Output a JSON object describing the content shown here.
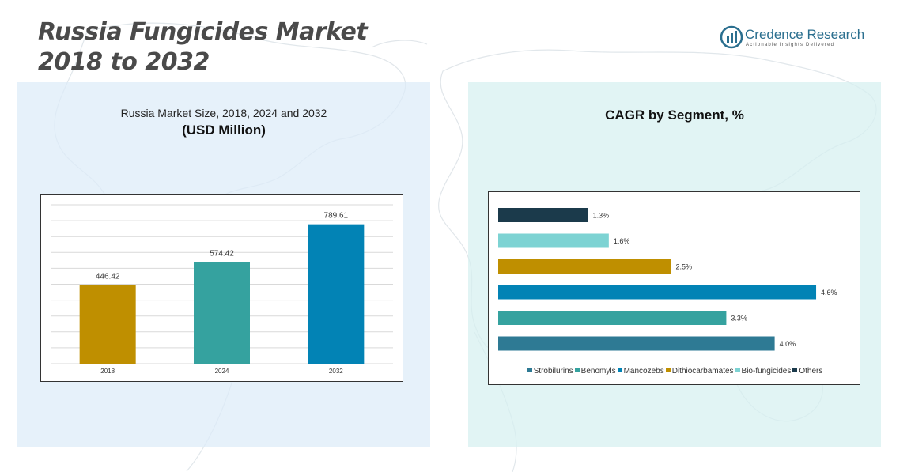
{
  "page": {
    "title_line1": "Russia Fungicides Market",
    "title_line2": "2018 to 2032"
  },
  "brand": {
    "name_part1": "Credence",
    "name_part2": " Research",
    "tagline": "Actionable Insights Delivered",
    "logo_icon": "credence-logo-icon"
  },
  "colors": {
    "gold": "#BF8F00",
    "teal": "#35A29F",
    "blue": "#0283B5",
    "dark": "#1B3A4B",
    "light_teal": "#7DD3D3",
    "steel": "#2E7A94"
  },
  "chart_data": [
    {
      "type": "bar",
      "title": "Russia Market Size, 2018, 2024 and 2032",
      "subtitle": "(USD Million)",
      "categories": [
        "2018",
        "2024",
        "2032"
      ],
      "values": [
        446.42,
        574.42,
        789.61
      ],
      "value_labels": [
        "446.42",
        "574.42",
        "789.61"
      ],
      "colors": [
        "#BF8F00",
        "#35A29F",
        "#0283B5"
      ],
      "ylim": [
        0,
        900
      ],
      "grid": true,
      "xlabel": "",
      "ylabel": ""
    },
    {
      "type": "bar",
      "orientation": "horizontal",
      "title": "CAGR by Segment, %",
      "categories": [
        "Others",
        "Bio-fungicides",
        "Dithiocarbamates",
        "Mancozebs",
        "Benomyls",
        "Strobilurins"
      ],
      "values": [
        1.3,
        1.6,
        2.5,
        4.6,
        3.3,
        4.0
      ],
      "value_labels": [
        "1.3%",
        "1.6%",
        "2.5%",
        "4.6%",
        "3.3%",
        "4.0%"
      ],
      "colors": [
        "#1B3A4B",
        "#7DD3D3",
        "#BF8F00",
        "#0283B5",
        "#35A29F",
        "#2E7A94"
      ],
      "xlim": [
        0,
        5.0
      ],
      "legend": [
        {
          "label": "Strobilurins",
          "color": "#2E7A94"
        },
        {
          "label": "Benomyls",
          "color": "#35A29F"
        },
        {
          "label": "Mancozebs",
          "color": "#0283B5"
        },
        {
          "label": "Dithiocarbamates",
          "color": "#BF8F00"
        },
        {
          "label": "Bio-fungicides",
          "color": "#7DD3D3"
        },
        {
          "label": "Others",
          "color": "#1B3A4B"
        }
      ],
      "legend_position": "bottom"
    }
  ]
}
